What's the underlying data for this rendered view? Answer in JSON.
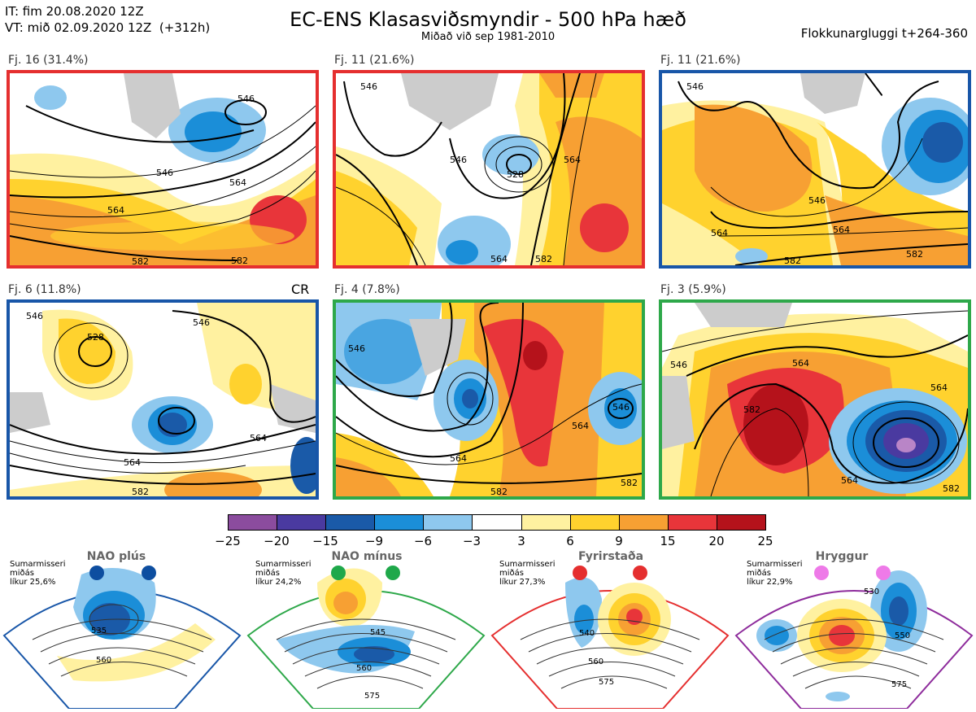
{
  "header": {
    "init_line": "IT: fim 20.08.2020 12Z",
    "valid_line": "VT: mið 02.09.2020 12Z  (+312h)",
    "title": "EC-ENS Klasasviðsmyndir - 500 hPa hæð",
    "subtitle": "Miðað við sep 1981-2010",
    "window": "Flokkunargluggi t+264-360"
  },
  "colors": {
    "purple": "#8b4c9e",
    "indigo": "#4a3aa0",
    "darkblue": "#1a5aa8",
    "blue": "#1b8ed8",
    "lightblue": "#8ec8ee",
    "white": "#ffffff",
    "paleyellow": "#fff1a0",
    "yellow": "#ffd22e",
    "orange": "#f7a033",
    "red": "#e8353a",
    "darkred": "#b5121b",
    "frame_red": "#e52f2f",
    "frame_blue": "#1856a8",
    "frame_green": "#2ea84a",
    "frame_purple": "#8e2c9c"
  },
  "panels": [
    {
      "label": "Fj. 16 (31.4%)",
      "frame": "red",
      "contours": [
        "546",
        "546",
        "564",
        "564",
        "582",
        "582"
      ]
    },
    {
      "label": "Fj. 11 (21.6%)",
      "frame": "red",
      "contours": [
        "546",
        "546",
        "528",
        "564",
        "564",
        "582"
      ]
    },
    {
      "label": "Fj. 11 (21.6%)",
      "frame": "blue",
      "contours": [
        "546",
        "546",
        "564",
        "564",
        "582",
        "582"
      ]
    },
    {
      "label": "Fj. 6 (11.8%)",
      "frame": "blue",
      "extra": "CR",
      "contours": [
        "546",
        "528",
        "546",
        "564",
        "564",
        "582"
      ]
    },
    {
      "label": "Fj. 4 (7.8%)",
      "frame": "green",
      "contours": [
        "546",
        "546",
        "564",
        "564",
        "582",
        "582"
      ]
    },
    {
      "label": "Fj. 3 (5.9%)",
      "frame": "green",
      "contours": [
        "546",
        "564",
        "582",
        "564",
        "564",
        "582"
      ]
    }
  ],
  "colorbar": {
    "colors": [
      "#8b4c9e",
      "#4a3aa0",
      "#1a5aa8",
      "#1b8ed8",
      "#8ec8ee",
      "#ffffff",
      "#fff1a0",
      "#ffd22e",
      "#f7a033",
      "#e8353a",
      "#b5121b"
    ],
    "ticks": [
      "−25",
      "−20",
      "−15",
      "−9",
      "−6",
      "−3",
      "3",
      "6",
      "9",
      "15",
      "20",
      "25"
    ]
  },
  "regimes": [
    {
      "name": "NAO plús",
      "text": "Sumarmisseri\nmiðás\nlíkur 25,6%",
      "frame": "#1856a8",
      "dot": "#0d4ea0",
      "contours": [
        "535",
        "560"
      ]
    },
    {
      "name": "NAO mínus",
      "text": "Sumarmisseri\nmiðás\nlíkur 24,2%",
      "frame": "#2ea84a",
      "dot": "#1fa84a",
      "contours": [
        "545",
        "560",
        "575"
      ]
    },
    {
      "name": "Fyrirstaða",
      "text": "Sumarmisseri\nmiðás\nlíkur 27,3%",
      "frame": "#e52f2f",
      "dot": "#e52f2f",
      "contours": [
        "540",
        "560",
        "575"
      ]
    },
    {
      "name": "Hryggur",
      "text": "Sumarmisseri\nmiðás\nlíkur 22,9%",
      "frame": "#8e2c9c",
      "dot": "#ee7ae8",
      "contours": [
        "530",
        "550",
        "575"
      ]
    }
  ]
}
